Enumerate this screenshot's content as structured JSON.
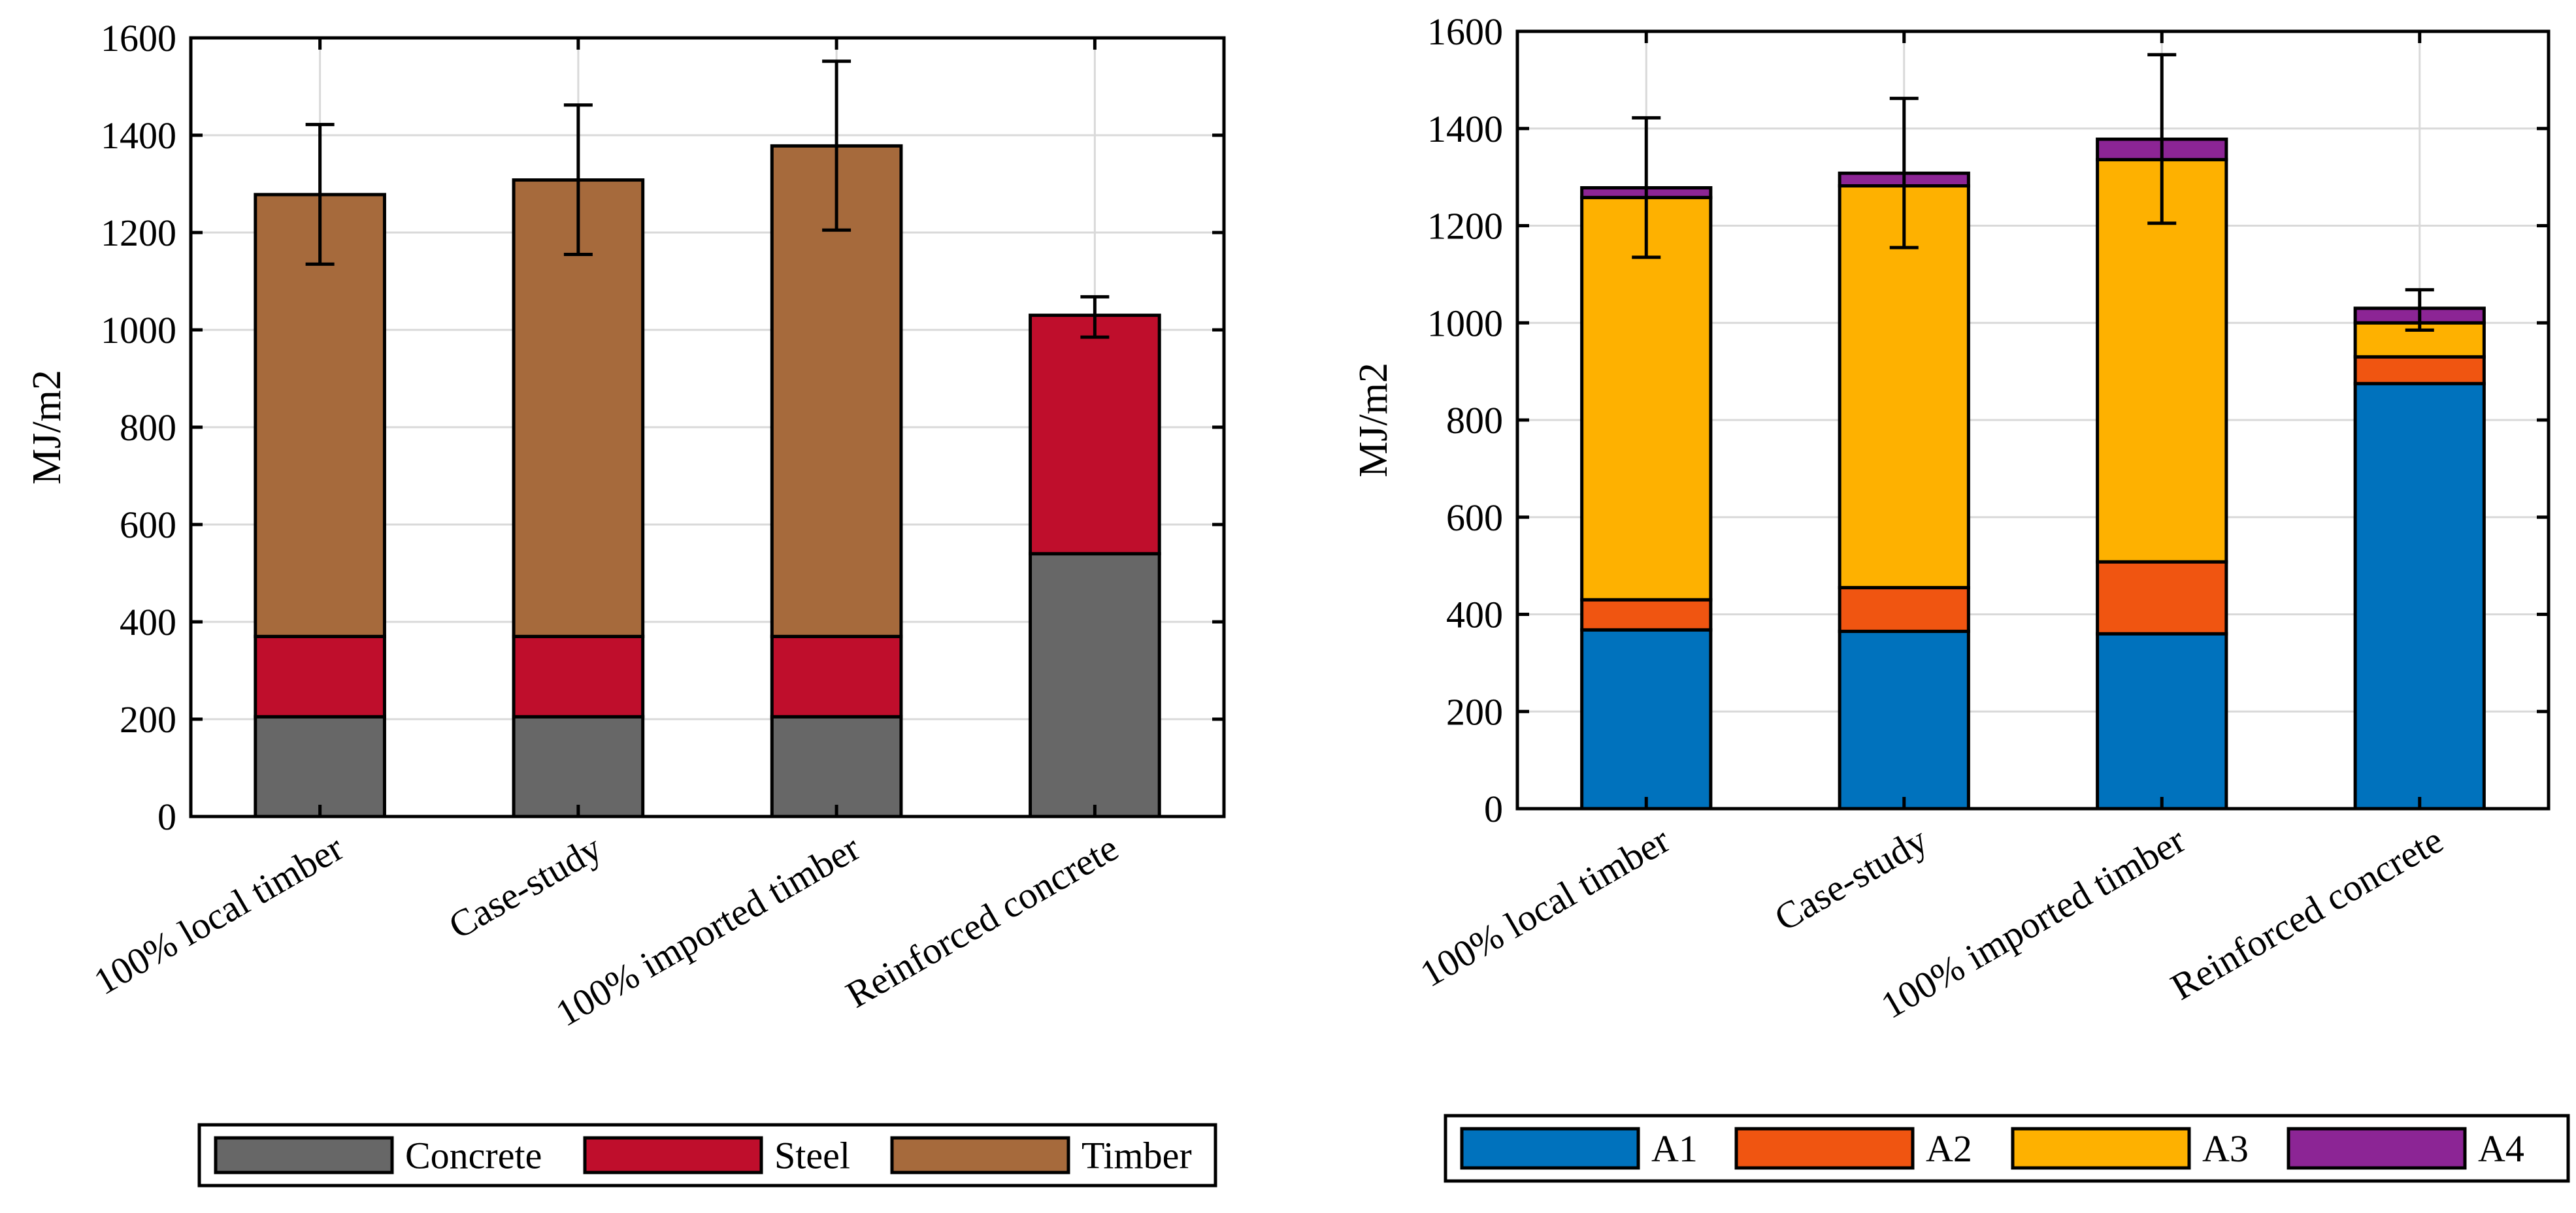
{
  "chart_data": [
    {
      "type": "bar",
      "stacked": true,
      "title": "",
      "xlabel": "",
      "ylabel": "MJ/m2",
      "ylim": [
        0,
        1600
      ],
      "yticks": [
        0,
        200,
        400,
        600,
        800,
        1000,
        1200,
        1400,
        1600
      ],
      "grid": true,
      "legend_position": "bottom",
      "categories": [
        "100% local timber",
        "Case-study",
        "100% imported timber",
        "Reinforced concrete"
      ],
      "series": [
        {
          "name": "Concrete",
          "color": "#676767",
          "values": [
            205,
            205,
            205,
            540
          ]
        },
        {
          "name": "Steel",
          "color": "#bf0e2c",
          "values": [
            165,
            165,
            165,
            490
          ]
        },
        {
          "name": "Timber",
          "color": "#a66a3c",
          "values": [
            908,
            938,
            1008,
            0
          ]
        }
      ],
      "totals": [
        1278,
        1308,
        1378,
        1030
      ],
      "error_bars": [
        {
          "low": 1135,
          "high": 1422
        },
        {
          "low": 1155,
          "high": 1462
        },
        {
          "low": 1205,
          "high": 1552
        },
        {
          "low": 985,
          "high": 1068
        }
      ]
    },
    {
      "type": "bar",
      "stacked": true,
      "title": "",
      "xlabel": "",
      "ylabel": "MJ/m2",
      "ylim": [
        0,
        1600
      ],
      "yticks": [
        0,
        200,
        400,
        600,
        800,
        1000,
        1200,
        1400,
        1600
      ],
      "grid": true,
      "legend_position": "bottom",
      "categories": [
        "100% local timber",
        "Case-study",
        "100% imported timber",
        "Reinforced concrete"
      ],
      "series": [
        {
          "name": "A1",
          "color": "#0072bd",
          "values": [
            368,
            365,
            360,
            875
          ]
        },
        {
          "name": "A2",
          "color": "#f05511",
          "values": [
            62,
            90,
            148,
            55
          ]
        },
        {
          "name": "A3",
          "color": "#feb100",
          "values": [
            828,
            827,
            828,
            70
          ]
        },
        {
          "name": "A4",
          "color": "#8c2595",
          "values": [
            20,
            26,
            42,
            30
          ]
        }
      ],
      "totals": [
        1278,
        1308,
        1378,
        1030
      ],
      "error_bars": [
        {
          "low": 1135,
          "high": 1422
        },
        {
          "low": 1155,
          "high": 1462
        },
        {
          "low": 1205,
          "high": 1552
        },
        {
          "low": 985,
          "high": 1068
        }
      ]
    }
  ]
}
